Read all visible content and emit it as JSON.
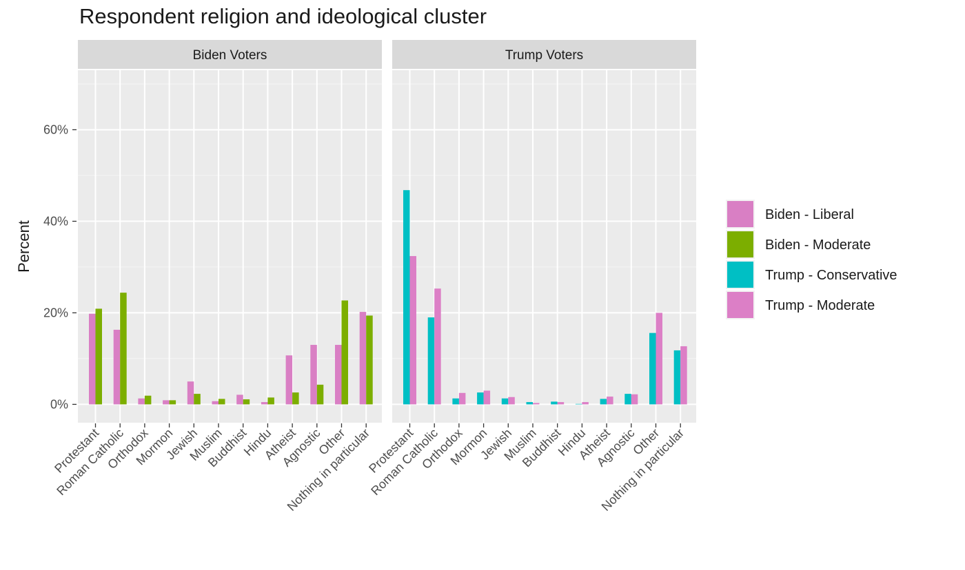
{
  "chart_data": {
    "type": "bar",
    "title": "Respondent religion and ideological cluster",
    "ylabel": "Percent",
    "xlabel": "",
    "ylim": [
      -4,
      73
    ],
    "yticks": [
      0,
      20,
      40,
      60
    ],
    "ytick_labels": [
      "0%",
      "20%",
      "40%",
      "60%"
    ],
    "grid": true,
    "legend_position": "right",
    "categories": [
      "Protestant",
      "Roman Catholic",
      "Orthodox",
      "Mormon",
      "Jewish",
      "Muslim",
      "Buddhist",
      "Hindu",
      "Atheist",
      "Agnostic",
      "Other",
      "Nothing in particular"
    ],
    "legend": [
      {
        "name": "Biden - Liberal",
        "color": "#d97fc4"
      },
      {
        "name": "Biden - Moderate",
        "color": "#7cae00"
      },
      {
        "name": "Trump - Conservative",
        "color": "#00bfc4"
      },
      {
        "name": "Trump - Moderate",
        "color": "#dc7fc6"
      }
    ],
    "panels": [
      {
        "strip": "Biden Voters",
        "series": [
          {
            "name": "Biden - Liberal",
            "color": "#d97fc4",
            "values": [
              19.8,
              16.3,
              1.3,
              0.9,
              5.0,
              0.7,
              2.1,
              0.5,
              10.7,
              13.0,
              13.0,
              20.2
            ]
          },
          {
            "name": "Biden - Moderate",
            "color": "#7cae00",
            "values": [
              20.9,
              24.4,
              1.9,
              0.9,
              2.3,
              1.2,
              1.1,
              1.5,
              2.6,
              4.3,
              22.7,
              19.4
            ]
          }
        ]
      },
      {
        "strip": "Trump Voters",
        "series": [
          {
            "name": "Trump - Conservative",
            "color": "#00bfc4",
            "values": [
              46.8,
              19.0,
              1.3,
              2.6,
              1.3,
              0.5,
              0.6,
              0.1,
              1.2,
              2.3,
              15.6,
              11.8
            ]
          },
          {
            "name": "Trump - Moderate",
            "color": "#dc7fc6",
            "values": [
              32.4,
              25.3,
              2.5,
              3.0,
              1.6,
              0.3,
              0.5,
              0.5,
              1.7,
              2.2,
              20.0,
              12.7
            ]
          }
        ]
      }
    ]
  }
}
